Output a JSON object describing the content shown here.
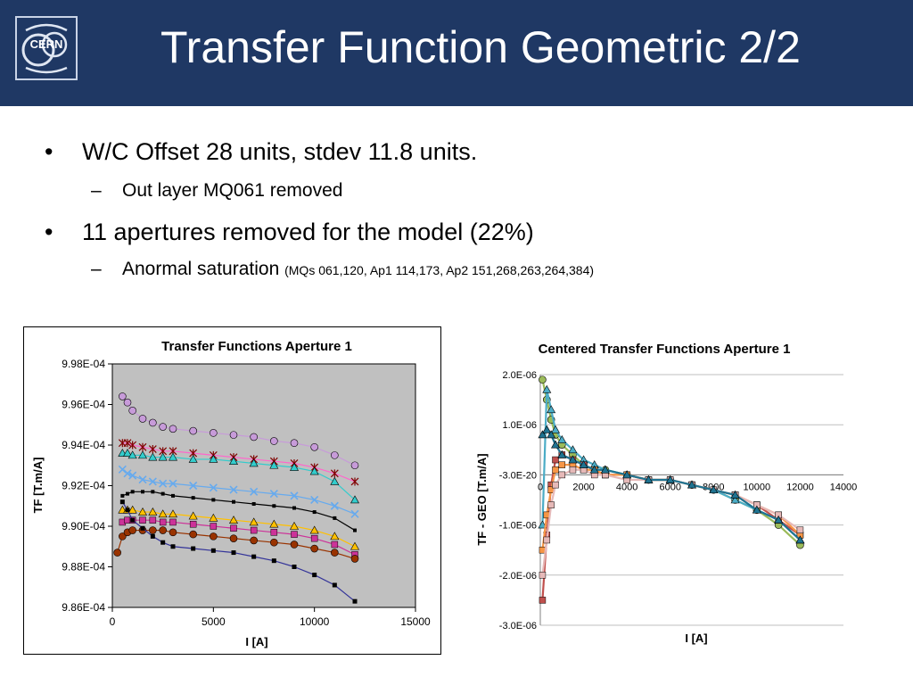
{
  "slide": {
    "title": "Transfer Function Geometric 2/2",
    "logo_text": "CERN",
    "bullets": [
      {
        "text": "W/C Offset 28 units, stdev 11.8 units."
      },
      {
        "text": "Out layer MQ061 removed"
      },
      {
        "text": "11 apertures removed for the model (22%)"
      },
      {
        "text": "Anormal saturation",
        "note": "(MQs 061,120, Ap1 114,173, Ap2 151,268,263,264,384)"
      }
    ],
    "bullet_symbol": "•",
    "sub_symbol": "–"
  },
  "chart_data": [
    {
      "type": "scatter",
      "title": "Transfer Functions Aperture 1",
      "xlabel": "I [A]",
      "ylabel": "TF [T.m/A]",
      "xlim": [
        0,
        15000
      ],
      "ylim": [
        0.000986,
        0.000998
      ],
      "x_ticks": [
        "0",
        "5000",
        "10000",
        "15000"
      ],
      "y_ticks": [
        "9.86E-04",
        "9.88E-04",
        "9.90E-04",
        "9.92E-04",
        "9.94E-04",
        "9.96E-04",
        "9.98E-04"
      ],
      "plot_background": "#c0c0c0",
      "x": [
        0,
        250,
        500,
        750,
        1000,
        1500,
        2000,
        2500,
        3000,
        4000,
        5000,
        6000,
        7000,
        8000,
        9000,
        10000,
        11000,
        12000
      ],
      "series": [
        {
          "color": "#c79bd9",
          "marker": "circle",
          "values": [
            null,
            null,
            0.0009964,
            0.0009961,
            0.0009957,
            0.0009953,
            0.0009951,
            0.0009949,
            0.0009948,
            0.0009947,
            0.0009946,
            0.0009945,
            0.0009944,
            0.0009942,
            0.0009941,
            0.0009939,
            0.0009935,
            0.000993
          ]
        },
        {
          "color": "#ff66cc",
          "marker": "star",
          "values": [
            null,
            null,
            0.0009941,
            0.0009941,
            0.000994,
            0.0009939,
            0.0009938,
            0.0009937,
            0.0009937,
            0.0009936,
            0.0009935,
            0.0009934,
            0.0009933,
            0.0009932,
            0.0009931,
            0.0009929,
            0.0009926,
            0.0009922
          ]
        },
        {
          "color": "#33cccc",
          "marker": "triangle",
          "values": [
            null,
            null,
            0.0009936,
            0.0009936,
            0.0009935,
            0.0009935,
            0.0009934,
            0.0009934,
            0.0009934,
            0.0009933,
            0.0009933,
            0.0009932,
            0.0009931,
            0.000993,
            0.0009929,
            0.0009927,
            0.0009922,
            0.0009913
          ]
        },
        {
          "color": "#66aaee",
          "marker": "x",
          "values": [
            null,
            null,
            0.0009928,
            0.0009926,
            0.0009925,
            0.0009923,
            0.0009922,
            0.0009921,
            0.0009921,
            0.000992,
            0.0009919,
            0.0009918,
            0.0009917,
            0.0009916,
            0.0009915,
            0.0009913,
            0.000991,
            0.0009906
          ]
        },
        {
          "color": "#000000",
          "marker": "line",
          "values": [
            null,
            null,
            0.0009915,
            0.0009916,
            0.0009917,
            0.0009917,
            0.0009917,
            0.0009916,
            0.0009915,
            0.0009914,
            0.0009913,
            0.0009912,
            0.0009911,
            0.000991,
            0.0009909,
            0.0009907,
            0.0009904,
            0.0009898
          ]
        },
        {
          "color": "#ffc000",
          "marker": "triangle",
          "values": [
            null,
            null,
            0.0009908,
            0.0009908,
            0.0009908,
            0.0009907,
            0.0009907,
            0.0009906,
            0.0009906,
            0.0009905,
            0.0009904,
            0.0009903,
            0.0009902,
            0.0009901,
            0.00099,
            0.0009898,
            0.0009895,
            0.000989
          ]
        },
        {
          "color": "#cc3399",
          "marker": "square",
          "values": [
            null,
            null,
            0.0009902,
            0.0009903,
            0.0009903,
            0.0009903,
            0.0009903,
            0.0009902,
            0.0009902,
            0.0009901,
            0.00099,
            0.0009899,
            0.0009898,
            0.0009897,
            0.0009896,
            0.0009894,
            0.0009891,
            0.0009886
          ]
        },
        {
          "color": "#993300",
          "marker": "circle",
          "values": [
            null,
            0.0009887,
            0.0009895,
            0.0009897,
            0.0009898,
            0.0009898,
            0.0009898,
            0.0009898,
            0.0009897,
            0.0009896,
            0.0009895,
            0.0009894,
            0.0009893,
            0.0009892,
            0.0009891,
            0.0009889,
            0.0009887,
            0.0009884
          ]
        },
        {
          "color": "#333399",
          "marker": "square-small",
          "values": [
            null,
            null,
            0.0009912,
            0.0009908,
            0.0009903,
            0.0009899,
            0.0009895,
            0.0009892,
            0.000989,
            0.0009889,
            0.0009888,
            0.0009887,
            0.0009885,
            0.0009883,
            0.000988,
            0.0009876,
            0.0009871,
            0.0009863
          ]
        }
      ]
    },
    {
      "type": "line",
      "title": "Centered Transfer Functions Aperture 1",
      "xlabel": "I [A]",
      "ylabel": "TF - GEO [T.m/A]",
      "xlim": [
        0,
        14000
      ],
      "ylim": [
        -3e-06,
        2e-06
      ],
      "x_ticks": [
        "0",
        "2000",
        "4000",
        "6000",
        "8000",
        "10000",
        "12000",
        "14000"
      ],
      "y_ticks": [
        "2.0E-06",
        "1.0E-06",
        "-3.0E-20",
        "-1.0E-06",
        "-2.0E-06",
        "-3.0E-06"
      ],
      "grid": true,
      "x": [
        100,
        300,
        500,
        700,
        1000,
        1500,
        2000,
        2500,
        3000,
        4000,
        5000,
        6000,
        7000,
        8000,
        9000,
        10000,
        11000,
        12000
      ],
      "series": [
        {
          "color": "#9bbb59",
          "marker": "circle",
          "values": [
            1.9e-06,
            1.5e-06,
            1.1e-06,
            8e-07,
            6e-07,
            4e-07,
            2e-07,
            1e-07,
            1e-07,
            0.0,
            -1e-07,
            -1e-07,
            -2e-07,
            -3e-07,
            -5e-07,
            -7e-07,
            -1e-06,
            -1.4e-06
          ]
        },
        {
          "color": "#4bacc6",
          "marker": "triangle",
          "values": [
            -1e-06,
            1.7e-06,
            1.3e-06,
            9e-07,
            7e-07,
            5e-07,
            3e-07,
            2e-07,
            1e-07,
            0.0,
            -1e-07,
            -1e-07,
            -2e-07,
            -3e-07,
            -5e-07,
            -7e-07,
            -9e-07,
            -1.3e-06
          ]
        },
        {
          "color": "#c0504d",
          "marker": "square",
          "values": [
            -2.5e-06,
            -1.2e-06,
            -2e-07,
            3e-07,
            4e-07,
            3e-07,
            2e-07,
            1e-07,
            0.0,
            0.0,
            -1e-07,
            -1e-07,
            -2e-07,
            -3e-07,
            -4e-07,
            -6e-07,
            -9e-07,
            -1.2e-06
          ]
        },
        {
          "color": "#f79646",
          "marker": "square",
          "values": [
            -1.5e-06,
            -8e-07,
            -3e-07,
            1e-07,
            2e-07,
            2e-07,
            1e-07,
            1e-07,
            0.0,
            0.0,
            -1e-07,
            -1e-07,
            -2e-07,
            -3e-07,
            -4e-07,
            -6e-07,
            -8e-07,
            -1.2e-06
          ]
        },
        {
          "color": "#e6b9b8",
          "marker": "square",
          "values": [
            -2e-06,
            -1.3e-06,
            -6e-07,
            -2e-07,
            0.0,
            1e-07,
            1e-07,
            0.0,
            0.0,
            -1e-07,
            -1e-07,
            -1e-07,
            -2e-07,
            -3e-07,
            -4e-07,
            -6e-07,
            -8e-07,
            -1.1e-06
          ]
        },
        {
          "color": "#1f7391",
          "marker": "triangle",
          "values": [
            8e-07,
            9e-07,
            8e-07,
            6e-07,
            4e-07,
            3e-07,
            2e-07,
            1e-07,
            1e-07,
            0.0,
            -1e-07,
            -1e-07,
            -2e-07,
            -3e-07,
            -4e-07,
            -7e-07,
            -9e-07,
            -1.3e-06
          ]
        }
      ]
    }
  ]
}
